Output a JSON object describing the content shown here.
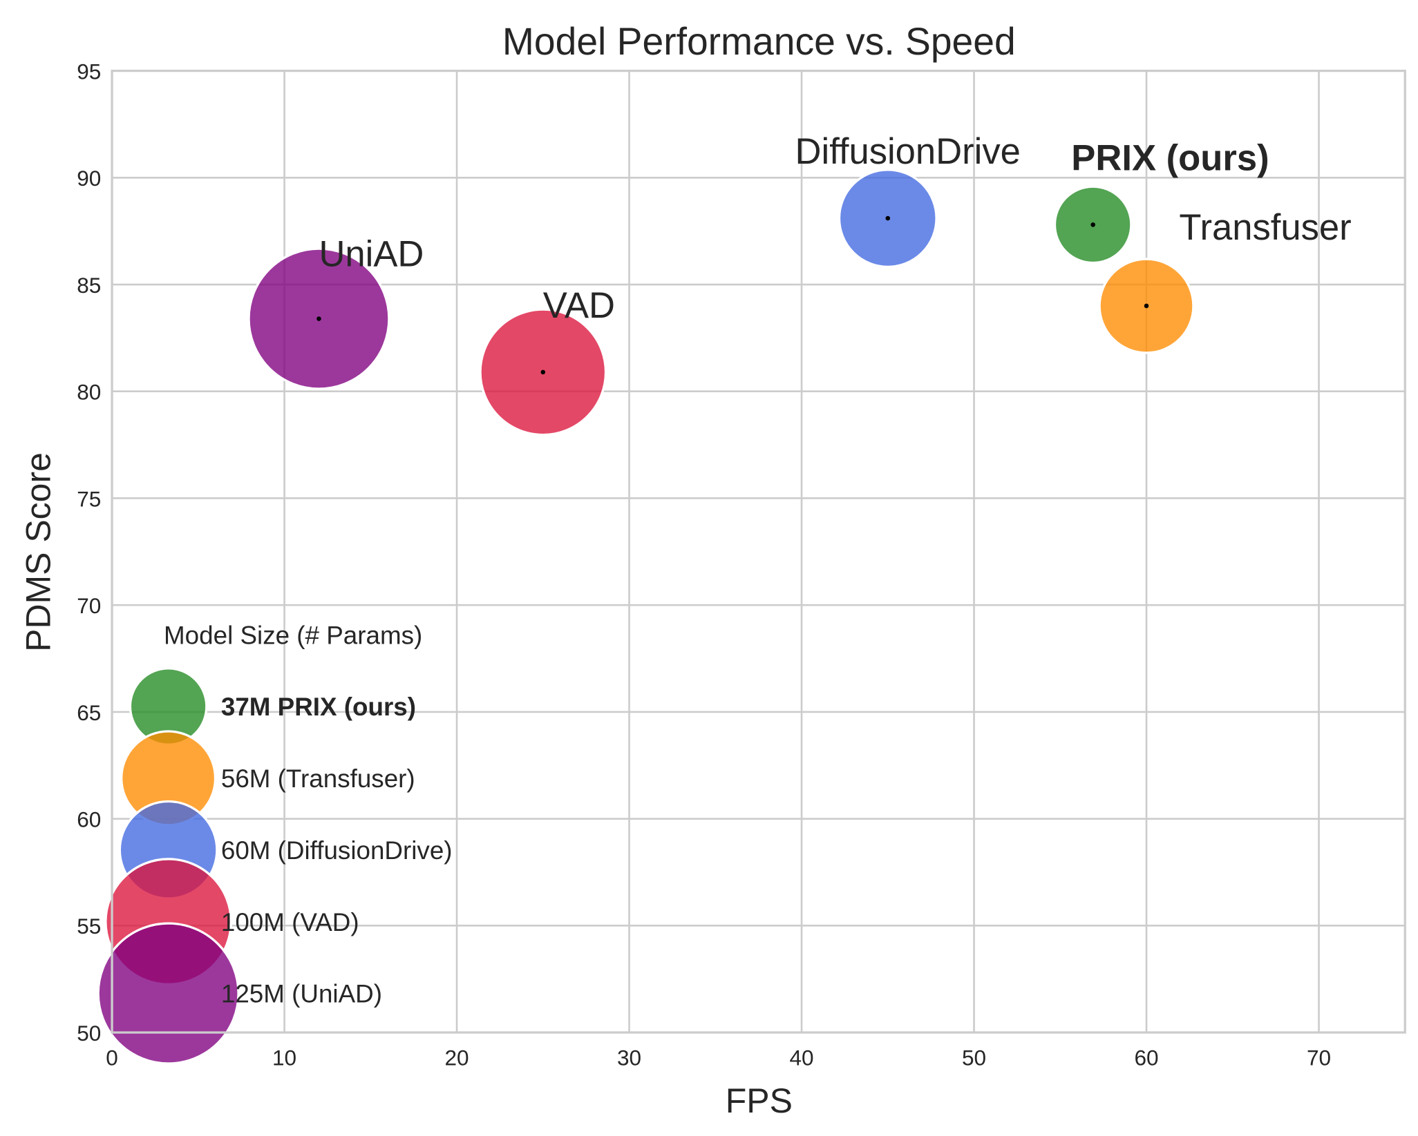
{
  "chart_data": {
    "type": "scatter",
    "title": "Model Performance vs. Speed",
    "xlabel": "FPS",
    "ylabel": "PDMS Score",
    "xlim": [
      0,
      75
    ],
    "ylim": [
      50,
      95
    ],
    "xticks": [
      0,
      10,
      20,
      30,
      40,
      50,
      60,
      70
    ],
    "yticks": [
      50,
      55,
      60,
      65,
      70,
      75,
      80,
      85,
      90,
      95
    ],
    "grid": true,
    "bubble_size_encodes": "params_millions",
    "points": [
      {
        "label": "UniAD",
        "fps": 12,
        "pdms": 83.4,
        "params_millions": 125,
        "color": "#800080",
        "bold": false
      },
      {
        "label": "VAD",
        "fps": 25,
        "pdms": 80.9,
        "params_millions": 100,
        "color": "#DC143C",
        "bold": false
      },
      {
        "label": "DiffusionDrive",
        "fps": 45,
        "pdms": 88.1,
        "params_millions": 60,
        "color": "#4169E1",
        "bold": false
      },
      {
        "label": "PRIX (ours)",
        "fps": 56.9,
        "pdms": 87.8,
        "params_millions": 37,
        "color": "#228B22",
        "bold": true
      },
      {
        "label": "Transfuser",
        "fps": 60,
        "pdms": 84.0,
        "params_millions": 56,
        "color": "#FF8C00",
        "bold": false
      }
    ],
    "legend": {
      "title": "Model Size (# Params)",
      "placement": "lower-left",
      "entries": [
        {
          "label": "37M PRIX (ours)",
          "params_millions": 37,
          "color": "#228B22",
          "bold": true
        },
        {
          "label": "56M (Transfuser)",
          "params_millions": 56,
          "color": "#FF8C00",
          "bold": false
        },
        {
          "label": "60M (DiffusionDrive)",
          "params_millions": 60,
          "color": "#4169E1",
          "bold": false
        },
        {
          "label": "100M (VAD)",
          "params_millions": 100,
          "color": "#DC143C",
          "bold": false
        },
        {
          "label": "125M (UniAD)",
          "params_millions": 125,
          "color": "#800080",
          "bold": false
        }
      ]
    }
  }
}
